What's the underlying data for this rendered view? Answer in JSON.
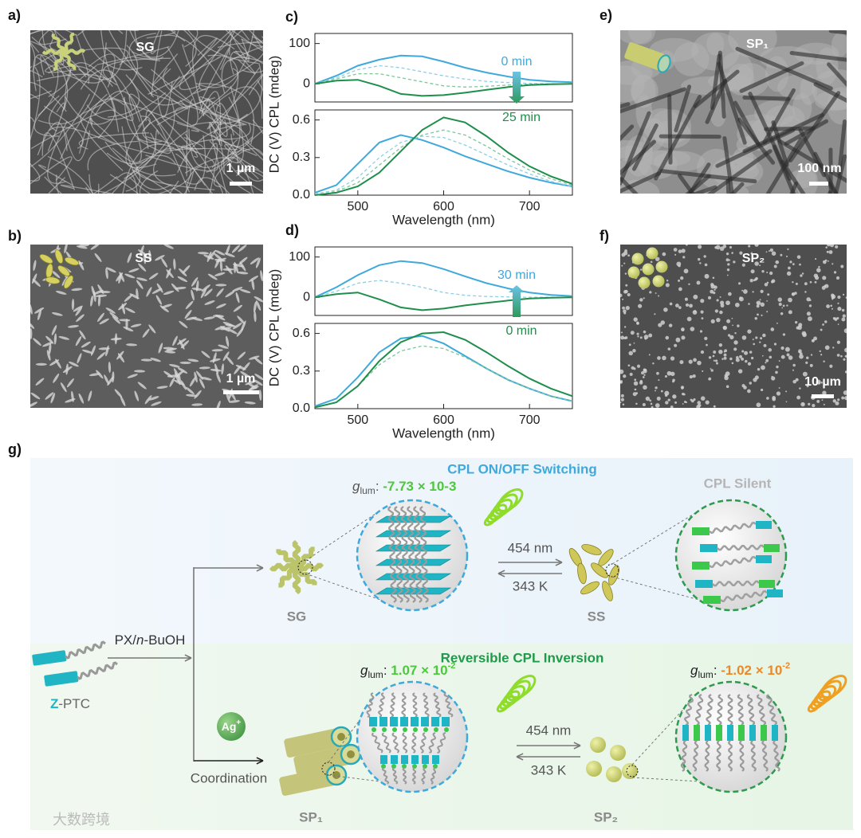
{
  "chart_data": [
    {
      "type": "line",
      "panel": "c)",
      "ylabel": "DC (V) CPL (mdeg)",
      "legend_arrow": "down",
      "x": [
        450,
        475,
        500,
        525,
        550,
        575,
        600,
        625,
        650,
        675,
        700,
        725,
        750
      ],
      "xlim": [
        450,
        750
      ],
      "ylim": [
        -45,
        125
      ],
      "yticks": [
        0,
        100
      ],
      "series": [
        {
          "name": "0 min",
          "color": "#3fa9dc",
          "values": [
            0,
            20,
            45,
            60,
            70,
            68,
            55,
            40,
            28,
            18,
            10,
            6,
            4
          ]
        },
        {
          "color": "#8ccfe6",
          "dashed": true,
          "values": [
            0,
            15,
            35,
            45,
            40,
            30,
            20,
            12,
            6,
            3,
            1,
            0,
            0
          ]
        },
        {
          "color": "#7cc79a",
          "dashed": true,
          "values": [
            0,
            12,
            25,
            25,
            15,
            5,
            -5,
            -8,
            -6,
            -3,
            -1,
            0,
            0
          ]
        },
        {
          "name": "25 min",
          "color": "#1e8f4a",
          "values": [
            0,
            8,
            10,
            -5,
            -25,
            -30,
            -28,
            -22,
            -15,
            -8,
            -3,
            -1,
            0
          ]
        }
      ]
    },
    {
      "type": "line",
      "xlabel": "Wavelength (nm)",
      "x": [
        450,
        475,
        500,
        525,
        550,
        575,
        600,
        625,
        650,
        675,
        700,
        725,
        750
      ],
      "xlim": [
        450,
        750
      ],
      "xticks": [
        500,
        600,
        700
      ],
      "ylim": [
        0,
        0.68
      ],
      "yticks": [
        {
          "value": 0,
          "label": "0.0"
        },
        0.3,
        0.6
      ],
      "series": [
        {
          "color": "#3fa9dc",
          "values": [
            0.02,
            0.08,
            0.25,
            0.42,
            0.48,
            0.44,
            0.38,
            0.31,
            0.25,
            0.19,
            0.14,
            0.1,
            0.07
          ]
        },
        {
          "color": "#8ccfe6",
          "dashed": true,
          "values": [
            0.01,
            0.04,
            0.14,
            0.3,
            0.42,
            0.47,
            0.46,
            0.4,
            0.32,
            0.24,
            0.17,
            0.11,
            0.07
          ]
        },
        {
          "color": "#7cc79a",
          "dashed": true,
          "values": [
            0,
            0.03,
            0.1,
            0.24,
            0.38,
            0.48,
            0.52,
            0.48,
            0.39,
            0.29,
            0.2,
            0.13,
            0.08
          ]
        },
        {
          "color": "#1e8f4a",
          "values": [
            0,
            0.02,
            0.07,
            0.18,
            0.35,
            0.52,
            0.62,
            0.58,
            0.47,
            0.34,
            0.23,
            0.15,
            0.09
          ]
        }
      ]
    },
    {
      "type": "line",
      "panel": "d)",
      "ylabel": "DC (V) CPL (mdeg)",
      "legend_arrow": "up",
      "x": [
        450,
        475,
        500,
        525,
        550,
        575,
        600,
        625,
        650,
        675,
        700,
        725,
        750
      ],
      "xlim": [
        450,
        750
      ],
      "ylim": [
        -45,
        125
      ],
      "yticks": [
        0,
        100
      ],
      "series": [
        {
          "name": "30 min",
          "color": "#3fa9dc",
          "values": [
            0,
            25,
            55,
            80,
            90,
            85,
            70,
            52,
            35,
            22,
            12,
            6,
            3
          ]
        },
        {
          "color": "#8ccfe6",
          "dashed": true,
          "values": [
            0,
            15,
            35,
            42,
            35,
            25,
            12,
            5,
            2,
            1,
            0,
            0,
            0
          ]
        },
        {
          "name": "0 min",
          "color": "#1e8f4a",
          "values": [
            0,
            8,
            12,
            -5,
            -25,
            -32,
            -28,
            -20,
            -14,
            -8,
            -3,
            -1,
            0
          ]
        }
      ]
    },
    {
      "type": "line",
      "xlabel": "Wavelength (nm)",
      "x": [
        450,
        475,
        500,
        525,
        550,
        575,
        600,
        625,
        650,
        675,
        700,
        725,
        750
      ],
      "xlim": [
        450,
        750
      ],
      "xticks": [
        500,
        600,
        700
      ],
      "ylim": [
        0,
        0.68
      ],
      "yticks": [
        {
          "value": 0,
          "label": "0.0"
        },
        0.3,
        0.6
      ],
      "series": [
        {
          "color": "#3fa9dc",
          "values": [
            0.02,
            0.08,
            0.25,
            0.45,
            0.56,
            0.58,
            0.52,
            0.42,
            0.32,
            0.23,
            0.16,
            0.1,
            0.06
          ]
        },
        {
          "color": "#7cc79a",
          "dashed": true,
          "values": [
            0.01,
            0.05,
            0.18,
            0.35,
            0.46,
            0.5,
            0.48,
            0.41,
            0.32,
            0.23,
            0.16,
            0.1,
            0.06
          ]
        },
        {
          "color": "#1e8f4a",
          "values": [
            0.01,
            0.05,
            0.18,
            0.38,
            0.53,
            0.6,
            0.61,
            0.55,
            0.45,
            0.34,
            0.24,
            0.16,
            0.1
          ]
        }
      ]
    }
  ],
  "panels": {
    "a": {
      "label": "a)",
      "name": "SG",
      "scale": "1 µm"
    },
    "b": {
      "label": "b)",
      "name": "SS",
      "scale": "1 µm"
    },
    "e": {
      "label": "e)",
      "name": "SP₁",
      "scale": "100 nm"
    },
    "f": {
      "label": "f)",
      "name": "SP₂",
      "scale": "10 µm"
    }
  },
  "diagram": {
    "label": "g)",
    "top_title": "CPL ON/OFF Switching",
    "silent": "CPL Silent",
    "bottom_title": "Reversible CPL Inversion",
    "glum": [
      {
        "symbol": "g",
        "subscript": "lum",
        "sep": ": ",
        "value": "-7.73 × 10-3"
      },
      {
        "symbol": "g",
        "subscript": "lum",
        "sep": ": ",
        "mantissa": "1.07 × 10",
        "exponent": "-2"
      },
      {
        "symbol": "g",
        "subscript": "lum",
        "sep": ": ",
        "mantissa": "-1.02 × 10",
        "exponent": "-2"
      }
    ],
    "switches": [
      {
        "forward": "454 nm",
        "backward": "343 K"
      },
      {
        "forward": "454 nm",
        "backward": "343 K"
      }
    ],
    "nodes": [
      "SG",
      "SS",
      "SP₁",
      "SP₂"
    ],
    "solvent": [
      "PX/",
      "n",
      "-BuOH"
    ],
    "precursor": [
      "Z",
      "-PTC"
    ],
    "ion": [
      "Ag",
      "+"
    ],
    "coordination": "Coordination",
    "watermark": "大数跨境"
  }
}
